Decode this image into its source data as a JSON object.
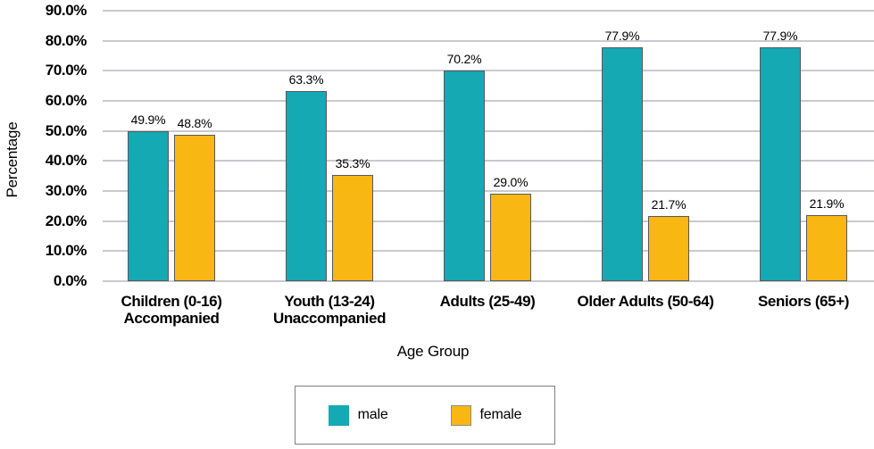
{
  "chart_data": {
    "type": "bar",
    "title": "",
    "xlabel": "Age Group",
    "ylabel": "Percentage",
    "categories": [
      "Children (0-16) Accompanied",
      "Youth (13-24) Unaccompanied",
      "Adults (25-49)",
      "Older Adults (50-64)",
      "Seniors (65+)"
    ],
    "category_lines": [
      [
        "Children (0-16)",
        "Accompanied"
      ],
      [
        "Youth (13-24)",
        "Unaccompanied"
      ],
      [
        "Adults (25-49)"
      ],
      [
        "Older Adults (50-64)"
      ],
      [
        "Seniors (65+)"
      ]
    ],
    "series": [
      {
        "name": "male",
        "color": "#14A9B3",
        "values": [
          49.9,
          63.3,
          70.2,
          77.9,
          77.9
        ],
        "labels": [
          "49.9%",
          "63.3%",
          "70.2%",
          "77.9%",
          "77.9%"
        ]
      },
      {
        "name": "female",
        "color": "#F9B713",
        "values": [
          48.8,
          35.3,
          29.0,
          21.7,
          21.9
        ],
        "labels": [
          "48.8%",
          "35.3%",
          "29.0%",
          "21.7%",
          "21.9%"
        ]
      }
    ],
    "y_ticks": [
      "0.0%",
      "10.0%",
      "20.0%",
      "30.0%",
      "40.0%",
      "50.0%",
      "60.0%",
      "70.0%",
      "80.0%",
      "90.0%"
    ],
    "ylim": [
      0,
      90
    ],
    "y_tick_step": 10,
    "grid": true,
    "legend_position": "bottom"
  },
  "colors": {
    "male": "#14A9B3",
    "female": "#F9B713",
    "bar_border": "#58595B",
    "gridline": "#C9C9CF",
    "text": "#000000",
    "legend_border": "#7F7F7F",
    "background": "#FFFFFF"
  },
  "legend": {
    "items": [
      {
        "label": "male"
      },
      {
        "label": "female"
      }
    ]
  }
}
